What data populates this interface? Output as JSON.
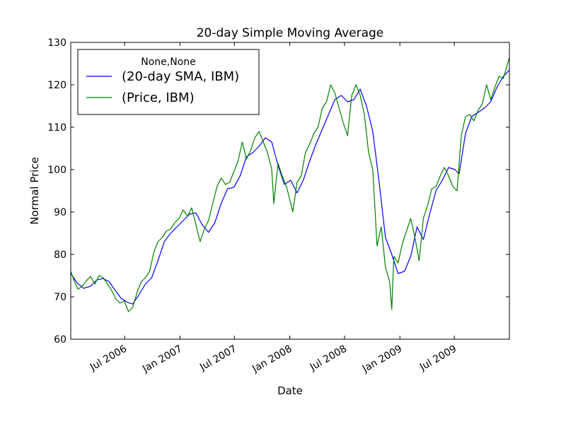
{
  "chart_data": {
    "type": "line",
    "title": "20-day Simple Moving Average",
    "xlabel": "Date",
    "ylabel": "Normal Price",
    "xlim": [
      "2006-01-03",
      "2009-12-31"
    ],
    "ylim": [
      60,
      130
    ],
    "y_ticks": [
      60,
      70,
      80,
      90,
      100,
      110,
      120,
      130
    ],
    "x_ticks": [
      {
        "date": "2006-07-01",
        "label": "Jul 2006"
      },
      {
        "date": "2007-01-01",
        "label": "Jan 2007"
      },
      {
        "date": "2007-07-01",
        "label": "Jul 2007"
      },
      {
        "date": "2008-01-01",
        "label": "Jan 2008"
      },
      {
        "date": "2008-07-01",
        "label": "Jul 2008"
      },
      {
        "date": "2009-01-01",
        "label": "Jan 2009"
      },
      {
        "date": "2009-07-01",
        "label": "Jul 2009"
      }
    ],
    "grid": false,
    "legend": {
      "title": "None,None",
      "position": "top-left"
    },
    "series": [
      {
        "name": "(20-day SMA, IBM)",
        "color": "#0000ff",
        "points": [
          [
            "2006-01-03",
            75.5
          ],
          [
            "2006-01-25",
            73.2
          ],
          [
            "2006-02-15",
            72.0
          ],
          [
            "2006-03-10",
            72.5
          ],
          [
            "2006-03-31",
            74.0
          ],
          [
            "2006-04-20",
            74.3
          ],
          [
            "2006-05-10",
            73.6
          ],
          [
            "2006-05-31",
            71.5
          ],
          [
            "2006-06-20",
            69.6
          ],
          [
            "2006-07-10",
            68.7
          ],
          [
            "2006-07-28",
            68.3
          ],
          [
            "2006-08-18",
            70.5
          ],
          [
            "2006-09-08",
            73.0
          ],
          [
            "2006-09-29",
            74.5
          ],
          [
            "2006-10-20",
            78.5
          ],
          [
            "2006-11-10",
            83.0
          ],
          [
            "2006-12-01",
            85.0
          ],
          [
            "2006-12-22",
            86.5
          ],
          [
            "2007-01-12",
            88.0
          ],
          [
            "2007-02-02",
            89.5
          ],
          [
            "2007-02-23",
            89.8
          ],
          [
            "2007-03-16",
            87.0
          ],
          [
            "2007-04-06",
            85.2
          ],
          [
            "2007-04-27",
            87.5
          ],
          [
            "2007-05-18",
            92.0
          ],
          [
            "2007-06-08",
            95.5
          ],
          [
            "2007-06-29",
            95.8
          ],
          [
            "2007-07-20",
            98.5
          ],
          [
            "2007-08-10",
            103.0
          ],
          [
            "2007-08-31",
            104.0
          ],
          [
            "2007-09-21",
            105.5
          ],
          [
            "2007-10-12",
            107.5
          ],
          [
            "2007-11-02",
            106.5
          ],
          [
            "2007-11-23",
            101.0
          ],
          [
            "2007-12-14",
            96.5
          ],
          [
            "2008-01-04",
            97.5
          ],
          [
            "2008-01-25",
            94.5
          ],
          [
            "2008-02-15",
            97.5
          ],
          [
            "2008-03-07",
            102.0
          ],
          [
            "2008-03-28",
            106.0
          ],
          [
            "2008-04-18",
            109.5
          ],
          [
            "2008-05-09",
            113.0
          ],
          [
            "2008-05-30",
            116.5
          ],
          [
            "2008-06-20",
            117.5
          ],
          [
            "2008-07-11",
            116.0
          ],
          [
            "2008-08-01",
            116.5
          ],
          [
            "2008-08-22",
            119.0
          ],
          [
            "2008-09-12",
            115.0
          ],
          [
            "2008-10-03",
            109.0
          ],
          [
            "2008-10-24",
            97.0
          ],
          [
            "2008-11-14",
            84.0
          ],
          [
            "2008-12-05",
            80.0
          ],
          [
            "2008-12-26",
            75.5
          ],
          [
            "2009-01-16",
            76.0
          ],
          [
            "2009-02-06",
            79.5
          ],
          [
            "2009-02-27",
            86.5
          ],
          [
            "2009-03-20",
            83.5
          ],
          [
            "2009-04-10",
            89.5
          ],
          [
            "2009-05-01",
            95.0
          ],
          [
            "2009-05-22",
            97.5
          ],
          [
            "2009-06-12",
            100.5
          ],
          [
            "2009-07-03",
            100.0
          ],
          [
            "2009-07-17",
            99.0
          ],
          [
            "2009-08-07",
            108.5
          ],
          [
            "2009-08-28",
            112.5
          ],
          [
            "2009-09-18",
            113.5
          ],
          [
            "2009-10-09",
            114.5
          ],
          [
            "2009-10-30",
            116.0
          ],
          [
            "2009-11-20",
            119.5
          ],
          [
            "2009-12-11",
            122.0
          ],
          [
            "2009-12-31",
            123.5
          ]
        ]
      },
      {
        "name": "(Price, IBM)",
        "color": "#008000",
        "points": [
          [
            "2006-01-03",
            76.0
          ],
          [
            "2006-01-13",
            74.0
          ],
          [
            "2006-01-27",
            71.8
          ],
          [
            "2006-02-10",
            72.5
          ],
          [
            "2006-02-24",
            73.8
          ],
          [
            "2006-03-10",
            74.8
          ],
          [
            "2006-03-24",
            73.0
          ],
          [
            "2006-04-07",
            75.0
          ],
          [
            "2006-04-21",
            74.5
          ],
          [
            "2006-05-05",
            73.0
          ],
          [
            "2006-05-19",
            71.5
          ],
          [
            "2006-06-02",
            69.5
          ],
          [
            "2006-06-16",
            68.5
          ],
          [
            "2006-06-30",
            69.0
          ],
          [
            "2006-07-14",
            66.5
          ],
          [
            "2006-07-28",
            67.5
          ],
          [
            "2006-08-11",
            71.0
          ],
          [
            "2006-08-25",
            73.5
          ],
          [
            "2006-09-08",
            74.5
          ],
          [
            "2006-09-22",
            76.0
          ],
          [
            "2006-10-06",
            80.5
          ],
          [
            "2006-10-20",
            83.0
          ],
          [
            "2006-11-03",
            84.0
          ],
          [
            "2006-11-17",
            85.5
          ],
          [
            "2006-12-01",
            86.0
          ],
          [
            "2006-12-15",
            87.5
          ],
          [
            "2006-12-29",
            88.5
          ],
          [
            "2007-01-12",
            90.5
          ],
          [
            "2007-01-26",
            89.0
          ],
          [
            "2007-02-09",
            91.0
          ],
          [
            "2007-02-23",
            87.0
          ],
          [
            "2007-03-09",
            83.0
          ],
          [
            "2007-03-23",
            86.0
          ],
          [
            "2007-04-06",
            88.0
          ],
          [
            "2007-04-20",
            92.0
          ],
          [
            "2007-05-04",
            96.0
          ],
          [
            "2007-05-18",
            98.0
          ],
          [
            "2007-06-01",
            96.5
          ],
          [
            "2007-06-15",
            97.0
          ],
          [
            "2007-06-29",
            99.5
          ],
          [
            "2007-07-13",
            102.0
          ],
          [
            "2007-07-27",
            106.5
          ],
          [
            "2007-08-10",
            102.5
          ],
          [
            "2007-08-24",
            104.5
          ],
          [
            "2007-09-07",
            107.5
          ],
          [
            "2007-09-21",
            109.0
          ],
          [
            "2007-10-05",
            106.5
          ],
          [
            "2007-10-19",
            104.0
          ],
          [
            "2007-11-02",
            100.0
          ],
          [
            "2007-11-09",
            92.0
          ],
          [
            "2007-11-23",
            101.5
          ],
          [
            "2007-12-07",
            98.5
          ],
          [
            "2007-12-21",
            96.0
          ],
          [
            "2008-01-04",
            92.0
          ],
          [
            "2008-01-11",
            90.0
          ],
          [
            "2008-01-25",
            97.0
          ],
          [
            "2008-02-08",
            98.5
          ],
          [
            "2008-02-22",
            104.0
          ],
          [
            "2008-03-07",
            106.0
          ],
          [
            "2008-03-21",
            108.5
          ],
          [
            "2008-04-04",
            110.0
          ],
          [
            "2008-04-18",
            114.5
          ],
          [
            "2008-05-02",
            116.0
          ],
          [
            "2008-05-16",
            120.0
          ],
          [
            "2008-05-30",
            118.0
          ],
          [
            "2008-06-13",
            114.5
          ],
          [
            "2008-06-27",
            111.0
          ],
          [
            "2008-07-11",
            108.0
          ],
          [
            "2008-07-25",
            117.5
          ],
          [
            "2008-08-08",
            120.0
          ],
          [
            "2008-08-22",
            117.5
          ],
          [
            "2008-09-05",
            113.0
          ],
          [
            "2008-09-19",
            104.0
          ],
          [
            "2008-10-03",
            100.0
          ],
          [
            "2008-10-17",
            82.0
          ],
          [
            "2008-10-31",
            86.5
          ],
          [
            "2008-11-14",
            77.0
          ],
          [
            "2008-11-28",
            73.5
          ],
          [
            "2008-12-05",
            67.0
          ],
          [
            "2008-12-12",
            79.5
          ],
          [
            "2008-12-26",
            78.0
          ],
          [
            "2009-01-09",
            82.5
          ],
          [
            "2009-01-23",
            85.5
          ],
          [
            "2009-02-06",
            88.5
          ],
          [
            "2009-02-20",
            84.0
          ],
          [
            "2009-03-06",
            78.5
          ],
          [
            "2009-03-20",
            88.5
          ],
          [
            "2009-04-03",
            91.5
          ],
          [
            "2009-04-17",
            95.5
          ],
          [
            "2009-05-01",
            96.0
          ],
          [
            "2009-05-15",
            98.5
          ],
          [
            "2009-05-29",
            100.5
          ],
          [
            "2009-06-12",
            98.5
          ],
          [
            "2009-06-26",
            96.0
          ],
          [
            "2009-07-10",
            95.0
          ],
          [
            "2009-07-24",
            108.0
          ],
          [
            "2009-08-07",
            112.5
          ],
          [
            "2009-08-21",
            113.0
          ],
          [
            "2009-09-04",
            111.5
          ],
          [
            "2009-09-18",
            114.0
          ],
          [
            "2009-10-02",
            115.5
          ],
          [
            "2009-10-16",
            120.0
          ],
          [
            "2009-10-30",
            116.5
          ],
          [
            "2009-11-13",
            119.5
          ],
          [
            "2009-11-27",
            122.0
          ],
          [
            "2009-12-11",
            121.5
          ],
          [
            "2009-12-31",
            126.5
          ]
        ]
      }
    ]
  }
}
